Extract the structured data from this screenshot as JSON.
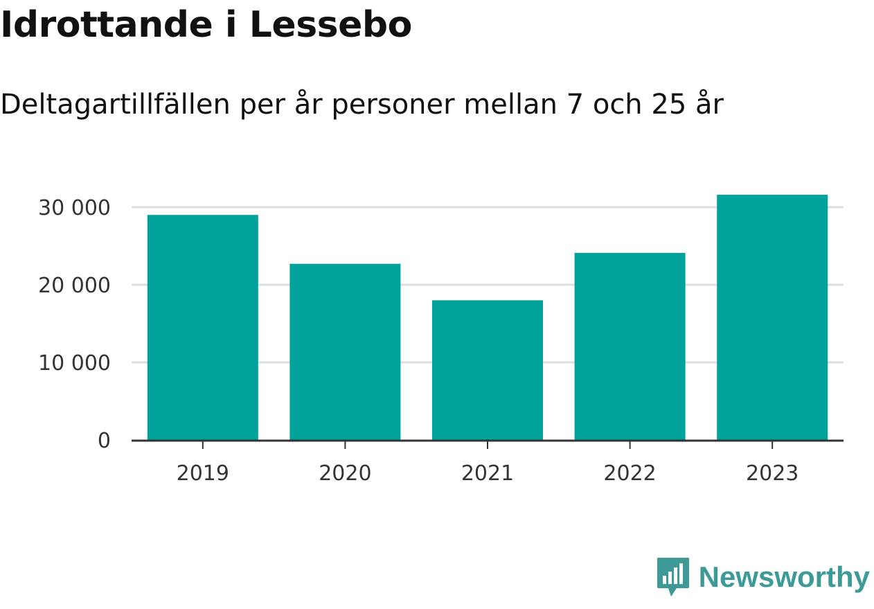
{
  "title": "Idrottande i Lessebo",
  "subtitle": "Deltagartillfällen per år personer mellan 7 och 25 år",
  "brand": {
    "name": "Newsworthy",
    "icon": "newsworthy-logo-icon",
    "color": "#3d9a97"
  },
  "colors": {
    "bar": "#00a39a",
    "grid": "#dddddd",
    "axis": "#333333",
    "text": "#333333"
  },
  "chart_data": {
    "type": "bar",
    "categories": [
      "2019",
      "2020",
      "2021",
      "2022",
      "2023"
    ],
    "values": [
      29000,
      22700,
      18000,
      24100,
      31600
    ],
    "ylim": [
      0,
      32000
    ],
    "yticks": [
      0,
      10000,
      20000,
      30000
    ],
    "ytick_labels": [
      "0",
      "10 000",
      "20 000",
      "30 000"
    ],
    "grid": true,
    "legend": false
  }
}
